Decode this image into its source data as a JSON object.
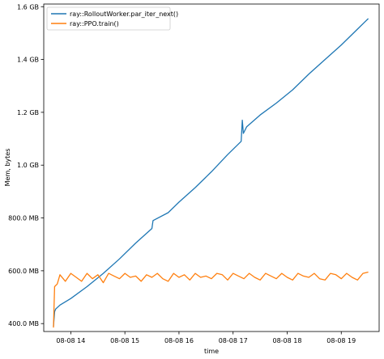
{
  "chart_data": {
    "type": "line",
    "xlabel": "time",
    "ylabel": "Mem, bytes",
    "x_ticks": [
      "08-08 14",
      "08-08 15",
      "08-08 16",
      "08-08 17",
      "08-08 18",
      "08-08 19"
    ],
    "y_ticks": [
      "400.0 MB",
      "600.0 MB",
      "800.0 MB",
      "1.0 GB",
      "1.2 GB",
      "1.4 GB",
      "1.6 GB"
    ],
    "xlim": [
      13.5,
      19.7
    ],
    "ylim": [
      370,
      1610
    ],
    "legend_position": "top-left",
    "series": [
      {
        "name": "ray::RolloutWorker.par_iter_next()",
        "color": "#1f77b4",
        "x": [
          13.68,
          13.7,
          13.72,
          13.8,
          14.0,
          14.3,
          14.6,
          14.9,
          15.2,
          15.5,
          15.52,
          15.8,
          16.0,
          16.3,
          16.6,
          16.9,
          17.15,
          17.17,
          17.19,
          17.25,
          17.5,
          17.8,
          18.1,
          18.4,
          18.7,
          19.0,
          19.3,
          19.45,
          19.5
        ],
        "y": [
          390,
          445,
          455,
          470,
          495,
          540,
          590,
          645,
          705,
          760,
          790,
          820,
          860,
          915,
          975,
          1040,
          1090,
          1170,
          1120,
          1145,
          1190,
          1235,
          1285,
          1345,
          1400,
          1455,
          1515,
          1545,
          1555
        ]
      },
      {
        "name": "ray::PPO.train()",
        "color": "#ff7f0e",
        "x": [
          13.68,
          13.7,
          13.75,
          13.8,
          13.9,
          14.0,
          14.1,
          14.2,
          14.3,
          14.4,
          14.5,
          14.6,
          14.7,
          14.8,
          14.9,
          15.0,
          15.1,
          15.2,
          15.3,
          15.4,
          15.5,
          15.6,
          15.7,
          15.8,
          15.9,
          16.0,
          16.1,
          16.2,
          16.3,
          16.4,
          16.5,
          16.6,
          16.7,
          16.8,
          16.9,
          17.0,
          17.1,
          17.2,
          17.3,
          17.4,
          17.5,
          17.6,
          17.7,
          17.8,
          17.9,
          18.0,
          18.1,
          18.2,
          18.3,
          18.4,
          18.5,
          18.6,
          18.7,
          18.8,
          18.9,
          19.0,
          19.1,
          19.2,
          19.3,
          19.4,
          19.5
        ],
        "y": [
          385,
          540,
          550,
          585,
          560,
          590,
          575,
          560,
          590,
          570,
          585,
          555,
          590,
          580,
          570,
          590,
          575,
          580,
          560,
          585,
          575,
          590,
          570,
          560,
          590,
          575,
          585,
          565,
          590,
          575,
          580,
          570,
          590,
          585,
          565,
          590,
          580,
          570,
          590,
          575,
          565,
          590,
          580,
          570,
          590,
          575,
          565,
          590,
          580,
          575,
          590,
          570,
          565,
          590,
          585,
          570,
          590,
          575,
          565,
          590,
          595
        ]
      }
    ]
  }
}
